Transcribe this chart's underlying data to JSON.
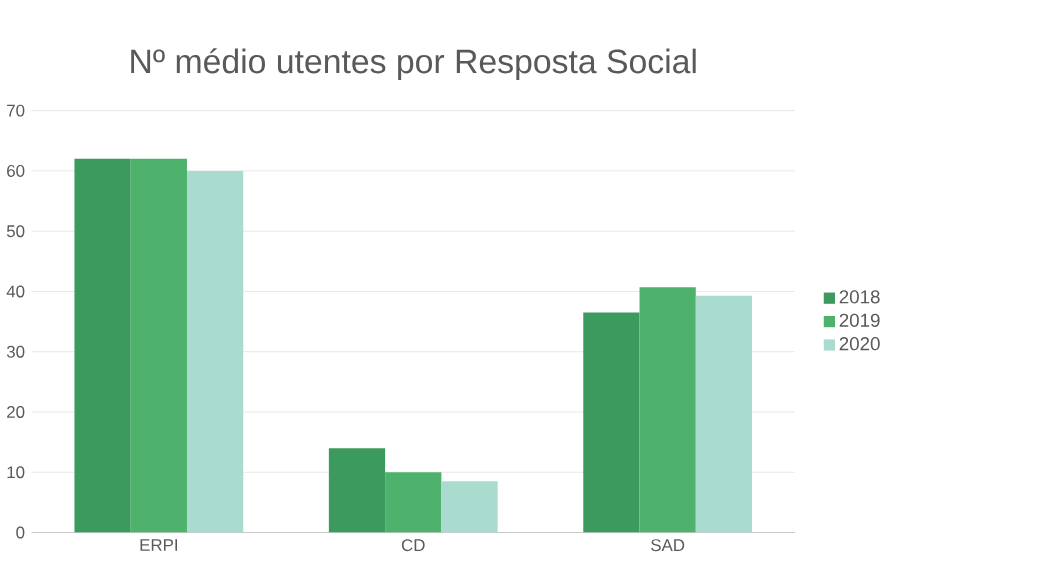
{
  "chart_data": {
    "type": "bar",
    "title": "Nº médio utentes por Resposta Social",
    "categories": [
      "ERPI",
      "CD",
      "SAD"
    ],
    "series": [
      {
        "name": "2018",
        "color": "#3c9a5e",
        "values": [
          62,
          14,
          36.5
        ]
      },
      {
        "name": "2019",
        "color": "#4fb26c",
        "values": [
          62,
          10,
          40.7
        ]
      },
      {
        "name": "2020",
        "color": "#a9dccf",
        "values": [
          60,
          8.5,
          39.3
        ]
      }
    ],
    "ylim": [
      0,
      70
    ],
    "yticks": [
      0,
      10,
      20,
      30,
      40,
      50,
      60,
      70
    ],
    "grid": "y",
    "legend": "right"
  }
}
